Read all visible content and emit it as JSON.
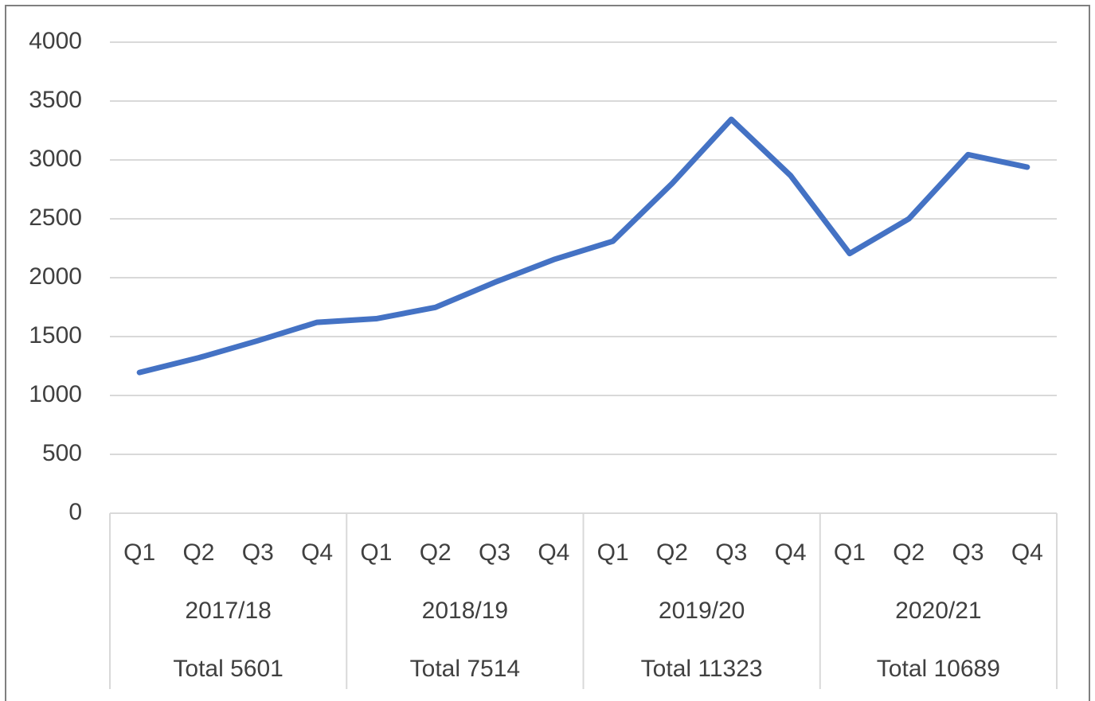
{
  "chart_data": {
    "type": "line",
    "categories": [
      "Q1",
      "Q2",
      "Q3",
      "Q4",
      "Q1",
      "Q2",
      "Q3",
      "Q4",
      "Q1",
      "Q2",
      "Q3",
      "Q4",
      "Q1",
      "Q2",
      "Q3",
      "Q4"
    ],
    "groups": [
      {
        "name": "2017/18",
        "total": "Total 5601"
      },
      {
        "name": "2018/19",
        "total": "Total 7514"
      },
      {
        "name": "2019/20",
        "total": "Total 11323"
      },
      {
        "name": "2020/21",
        "total": "Total 10689"
      }
    ],
    "values": [
      1195,
      1320,
      1465,
      1621,
      1652,
      1748,
      1960,
      2154,
      2310,
      2800,
      3345,
      2868,
      2205,
      2500,
      3045,
      2939
    ],
    "color": "#4472c4",
    "ylim": [
      0,
      4000
    ],
    "yticks": [
      0,
      500,
      1000,
      1500,
      2000,
      2500,
      3000,
      3500,
      4000
    ],
    "grid": true
  }
}
